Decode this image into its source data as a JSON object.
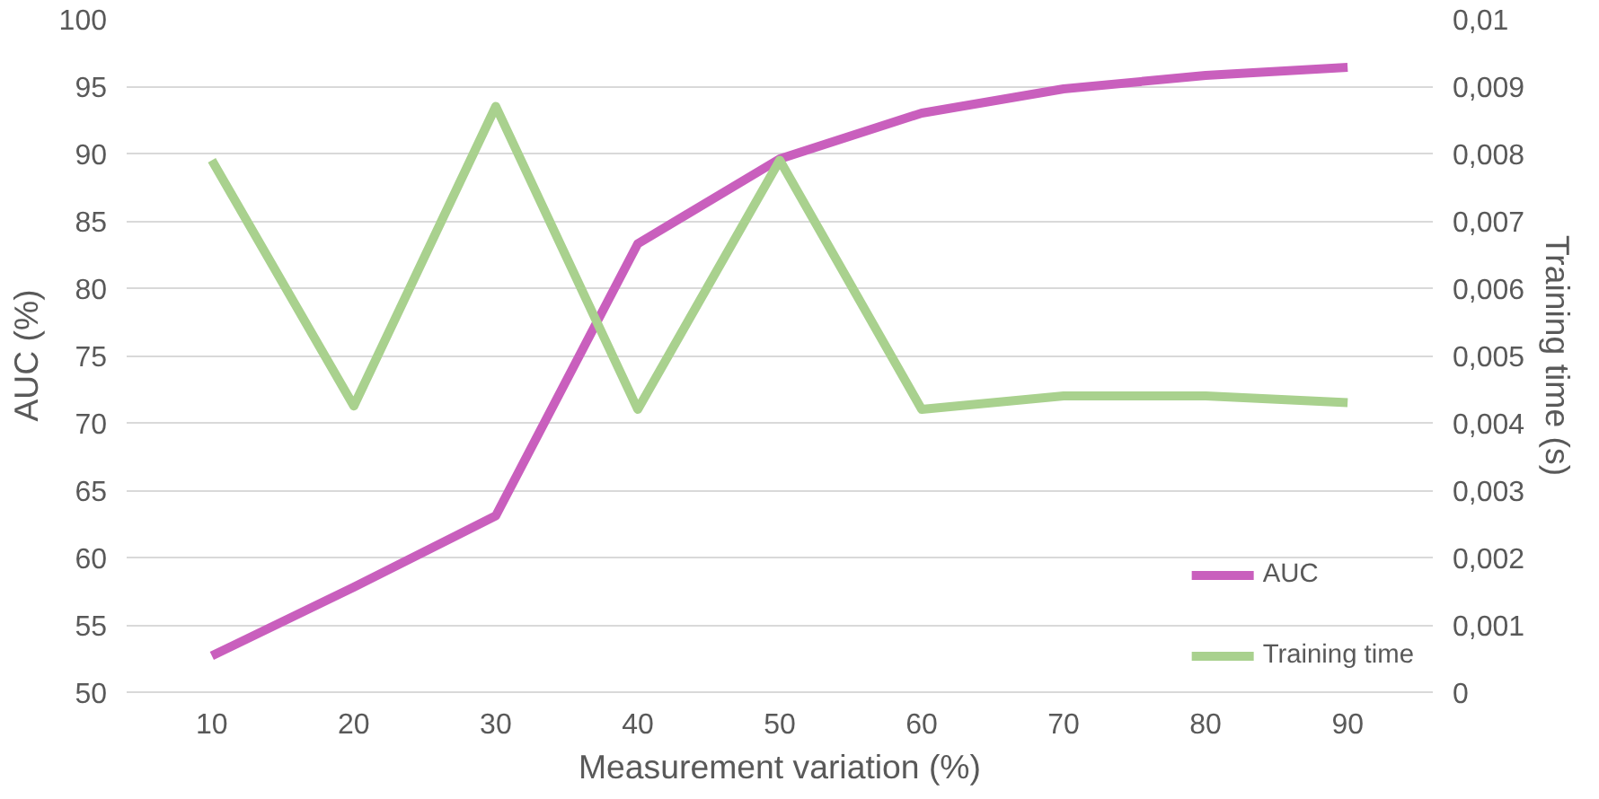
{
  "chart_data": {
    "type": "line",
    "xlabel": "Measurement variation (%)",
    "ylabel": "AUC (%)",
    "y2label": "Training time (s)",
    "categories": [
      "10",
      "20",
      "30",
      "40",
      "50",
      "60",
      "70",
      "80",
      "90"
    ],
    "series": [
      {
        "name": "AUC",
        "color": "#c95fbd",
        "values": [
          52.7,
          57.8,
          63.1,
          83.3,
          89.6,
          93.0,
          94.8,
          95.8,
          96.4
        ]
      },
      {
        "name": "Training time",
        "color": "#a9d18e",
        "axis": "y2",
        "values": [
          0.0079,
          0.00425,
          0.0087,
          0.0042,
          0.0079,
          0.0042,
          0.0044,
          0.0044,
          0.0043
        ]
      }
    ],
    "ylim": [
      50,
      100
    ],
    "yticks": [
      50,
      55,
      60,
      65,
      70,
      75,
      80,
      85,
      90,
      95,
      100
    ],
    "y2lim": [
      0,
      0.01
    ],
    "y2ticks": [
      {
        "value": 0,
        "label": "0"
      },
      {
        "value": 0.001,
        "label": "0,001"
      },
      {
        "value": 0.002,
        "label": "0,002"
      },
      {
        "value": 0.003,
        "label": "0,003"
      },
      {
        "value": 0.004,
        "label": "0,004"
      },
      {
        "value": 0.005,
        "label": "0,005"
      },
      {
        "value": 0.006,
        "label": "0,006"
      },
      {
        "value": 0.007,
        "label": "0,007"
      },
      {
        "value": 0.008,
        "label": "0,008"
      },
      {
        "value": 0.009,
        "label": "0,009"
      },
      {
        "value": 0.01,
        "label": "0,01"
      }
    ],
    "grid": "y",
    "legend": "bottom right",
    "marker": "none",
    "line_style": "solid"
  }
}
